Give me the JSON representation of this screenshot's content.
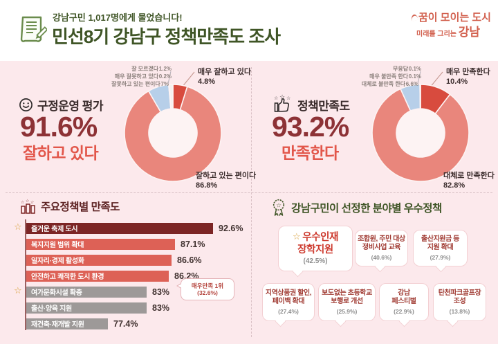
{
  "header": {
    "kicker": "강남구민 1,017명에게 물었습니다!",
    "title": "민선8기 강남구 정책만족도 조사",
    "logo": {
      "line1": "꿈이 모이는 도시",
      "line2_small": "미래를 그리는",
      "brand": "강남"
    }
  },
  "colors": {
    "header_green": "#3f5526",
    "logo_coral": "#d2604e",
    "pink_bg": "#fce9ec",
    "big_pct_red": "#8d3236",
    "sub_red": "#e2564a",
    "bars_title_maroon": "#5e2424",
    "bar_dark": "#7c2525",
    "bar_red": "#dd6156",
    "bar_gray": "#9d9998",
    "donut_strong": "#d84b3e",
    "donut_main": "#e9867c",
    "donut_blue": "#b7cfe9",
    "donut_blue_dark": "#7f9ec7",
    "donut_white": "#f4f0ee",
    "star_gold": "#d9a23d"
  },
  "sections": {
    "gov": {
      "icon": "smiley-face-icon",
      "title": "구정운영 평가",
      "big": "91.6%",
      "sub": "잘하고 있다"
    },
    "policy": {
      "icon": "thumbs-up-icon",
      "title": "정책만족도",
      "big": "93.2%",
      "sub": "만족한다"
    },
    "bars": {
      "icon": "podium-icon",
      "title": "주요정책별 만족도"
    },
    "awards": {
      "icon": "medal-icon",
      "title": "강남구민이 선정한 분야별 우수정책"
    }
  },
  "chart_data": [
    {
      "type": "pie",
      "name": "구정운영 평가",
      "donut": true,
      "slices": [
        {
          "label": "매우 잘하고 있다",
          "value": 4.8,
          "display": "4.8%",
          "color": "#d84b3e"
        },
        {
          "label": "잘하고 있는 편이다",
          "value": 86.8,
          "display": "86.8%",
          "color": "#e9867c"
        },
        {
          "label": "잘못하고 있는 편이다",
          "value": 7.0,
          "display": "7%",
          "color": "#b7cfe9"
        },
        {
          "label": "매우 잘못하고 있다",
          "value": 0.2,
          "display": "0.2%",
          "color": "#7f9ec7"
        },
        {
          "label": "잘 모르겠다",
          "value": 1.2,
          "display": "1.2%",
          "color": "#f4f0ee"
        }
      ]
    },
    {
      "type": "pie",
      "name": "정책만족도",
      "donut": true,
      "slices": [
        {
          "label": "매우 만족한다",
          "value": 10.4,
          "display": "10.4%",
          "color": "#d84b3e"
        },
        {
          "label": "대체로 만족한다",
          "value": 82.8,
          "display": "82.8%",
          "color": "#e9867c"
        },
        {
          "label": "대체로 불만족 한다",
          "value": 6.6,
          "display": "6.6%",
          "color": "#b7cfe9"
        },
        {
          "label": "매우 불만족 한다",
          "value": 0.1,
          "display": "0.1%",
          "color": "#7f9ec7"
        },
        {
          "label": "무응답",
          "value": 0.1,
          "display": "0.1%",
          "color": "#f4f0ee"
        }
      ]
    },
    {
      "type": "bar",
      "name": "주요정책별 만족도",
      "orientation": "horizontal",
      "xlim": [
        65.6,
        95
      ],
      "rows": [
        {
          "label": "즐거운 축제 도시",
          "value": 92.6,
          "display": "92.6%",
          "color": "#7c2525",
          "starred": true
        },
        {
          "label": "복지지원 범위 확대",
          "value": 87.1,
          "display": "87.1%",
          "color": "#dd6156",
          "starred": false
        },
        {
          "label": "일자리·경제 활성화",
          "value": 86.6,
          "display": "86.6%",
          "color": "#dd6156",
          "starred": false
        },
        {
          "label": "안전하고 쾌적한 도시 환경",
          "value": 86.2,
          "display": "86.2%",
          "color": "#dd6156",
          "starred": false
        },
        {
          "label": "여가문화시설 확충",
          "value": 83,
          "display": "83%",
          "color": "#9d9998",
          "starred": true,
          "callout": [
            "매우만족 1위",
            "(32.6%)"
          ]
        },
        {
          "label": "출산·양육 지원",
          "value": 83,
          "display": "83%",
          "color": "#9d9998",
          "starred": false
        },
        {
          "label": "재건축·재개발 지원",
          "value": 77.4,
          "display": "77.4%",
          "color": "#9d9998",
          "starred": false
        }
      ]
    }
  ],
  "awards_cards": [
    {
      "lines": [
        "우수인재",
        "장학지원"
      ],
      "pct": "(42.5%)",
      "starred": true
    },
    {
      "lines": [
        "조합원, 주민 대상",
        "정비사업 교육"
      ],
      "pct": "(40.6%)",
      "starred": false
    },
    {
      "lines": [
        "출산지원금 등",
        "지원 확대"
      ],
      "pct": "(27.9%)",
      "starred": false
    },
    {
      "lines": [
        "지역상품권 할인,",
        "페이백 확대"
      ],
      "pct": "(27.4%)",
      "starred": false
    },
    {
      "lines": [
        "보도없는 초등학교",
        "보행로 개선"
      ],
      "pct": "(25.9%)",
      "starred": false
    },
    {
      "lines": [
        "강남",
        "페스티벌"
      ],
      "pct": "(22.9%)",
      "starred": false
    },
    {
      "lines": [
        "탄천파크골프장",
        "조성"
      ],
      "pct": "(13.8%)",
      "starred": false
    }
  ]
}
